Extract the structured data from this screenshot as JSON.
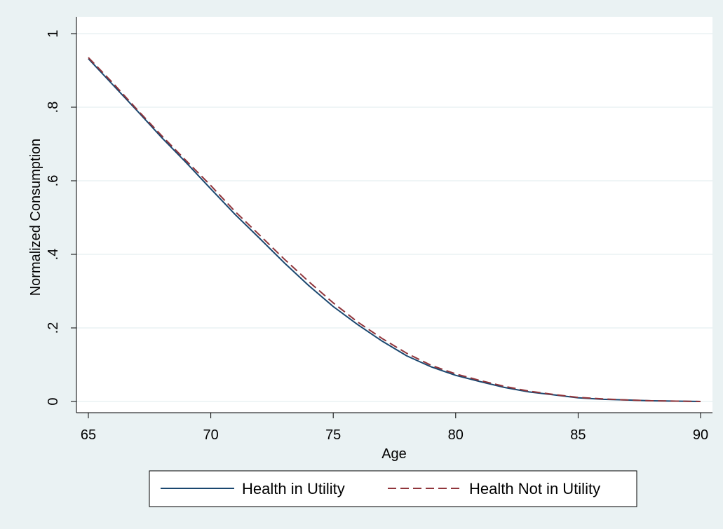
{
  "chart_data": {
    "type": "line",
    "title": "",
    "xlabel": "Age",
    "ylabel": "Normalized Consumption",
    "xlim": [
      64,
      91
    ],
    "ylim": [
      -0.02,
      1.02
    ],
    "x_ticks": [
      65,
      70,
      75,
      80,
      85,
      90
    ],
    "x_tick_labels": [
      "65",
      "70",
      "75",
      "80",
      "85",
      "90"
    ],
    "y_ticks": [
      0,
      0.2,
      0.4,
      0.6,
      0.8,
      1
    ],
    "y_tick_labels": [
      "0",
      ".2",
      ".4",
      ".6",
      ".8",
      "1"
    ],
    "grid": true,
    "legend_position": "bottom",
    "x": [
      65,
      66,
      67,
      68,
      69,
      70,
      71,
      72,
      73,
      74,
      75,
      76,
      77,
      78,
      79,
      80,
      81,
      82,
      83,
      84,
      85,
      86,
      87,
      88,
      89,
      90
    ],
    "series": [
      {
        "name": "Health in Utility",
        "color": "#1a476f",
        "style": "solid",
        "values": [
          0.932,
          0.861,
          0.79,
          0.717,
          0.649,
          0.578,
          0.508,
          0.443,
          0.377,
          0.315,
          0.258,
          0.209,
          0.164,
          0.124,
          0.094,
          0.071,
          0.054,
          0.038,
          0.026,
          0.018,
          0.01,
          0.006,
          0.004,
          0.002,
          0.001,
          0.0
        ]
      },
      {
        "name": "Health Not in Utility",
        "color": "#90353b",
        "style": "dashed",
        "values": [
          0.935,
          0.866,
          0.793,
          0.722,
          0.654,
          0.587,
          0.516,
          0.452,
          0.387,
          0.326,
          0.268,
          0.216,
          0.171,
          0.131,
          0.098,
          0.075,
          0.057,
          0.041,
          0.028,
          0.019,
          0.011,
          0.007,
          0.004,
          0.002,
          0.001,
          0.0
        ]
      }
    ]
  }
}
